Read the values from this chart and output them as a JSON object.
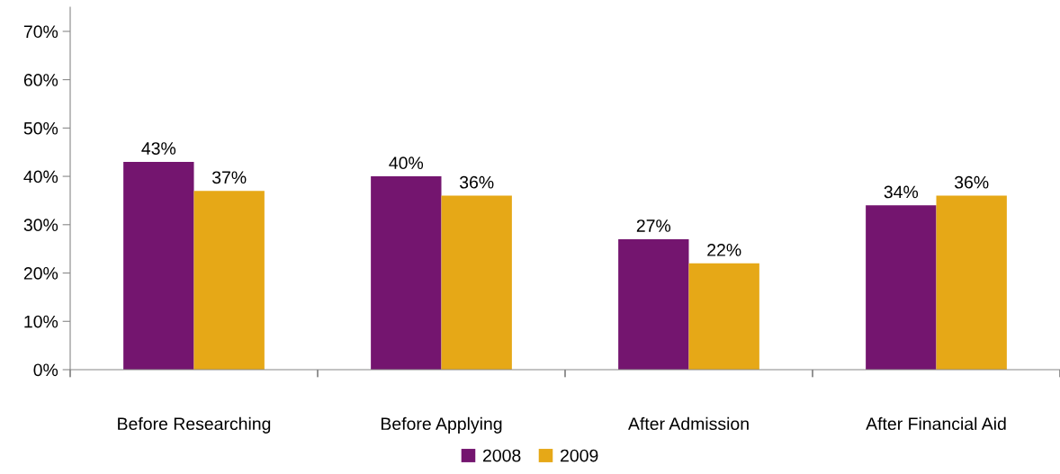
{
  "chart_data": {
    "type": "bar",
    "categories": [
      "Before Researching",
      "Before Applying",
      "After Admission",
      "After Financial Aid"
    ],
    "series": [
      {
        "name": "2008",
        "color": "#74156f",
        "values": [
          43,
          40,
          27,
          34
        ],
        "value_labels": [
          "43%",
          "40%",
          "27%",
          "34%"
        ]
      },
      {
        "name": "2009",
        "color": "#e6a817",
        "values": [
          37,
          36,
          22,
          36
        ],
        "value_labels": [
          "37%",
          "36%",
          "22%",
          "36%"
        ]
      }
    ],
    "ylim": [
      0,
      75
    ],
    "yticks": [
      {
        "value": 0,
        "label": "0%"
      },
      {
        "value": 10,
        "label": "10%"
      },
      {
        "value": 20,
        "label": "20%"
      },
      {
        "value": 30,
        "label": "30%"
      },
      {
        "value": 40,
        "label": "40%"
      },
      {
        "value": 50,
        "label": "50%"
      },
      {
        "value": 60,
        "label": "60%"
      },
      {
        "value": 70,
        "label": "70%"
      }
    ],
    "grid": false,
    "legend": "bottom"
  }
}
